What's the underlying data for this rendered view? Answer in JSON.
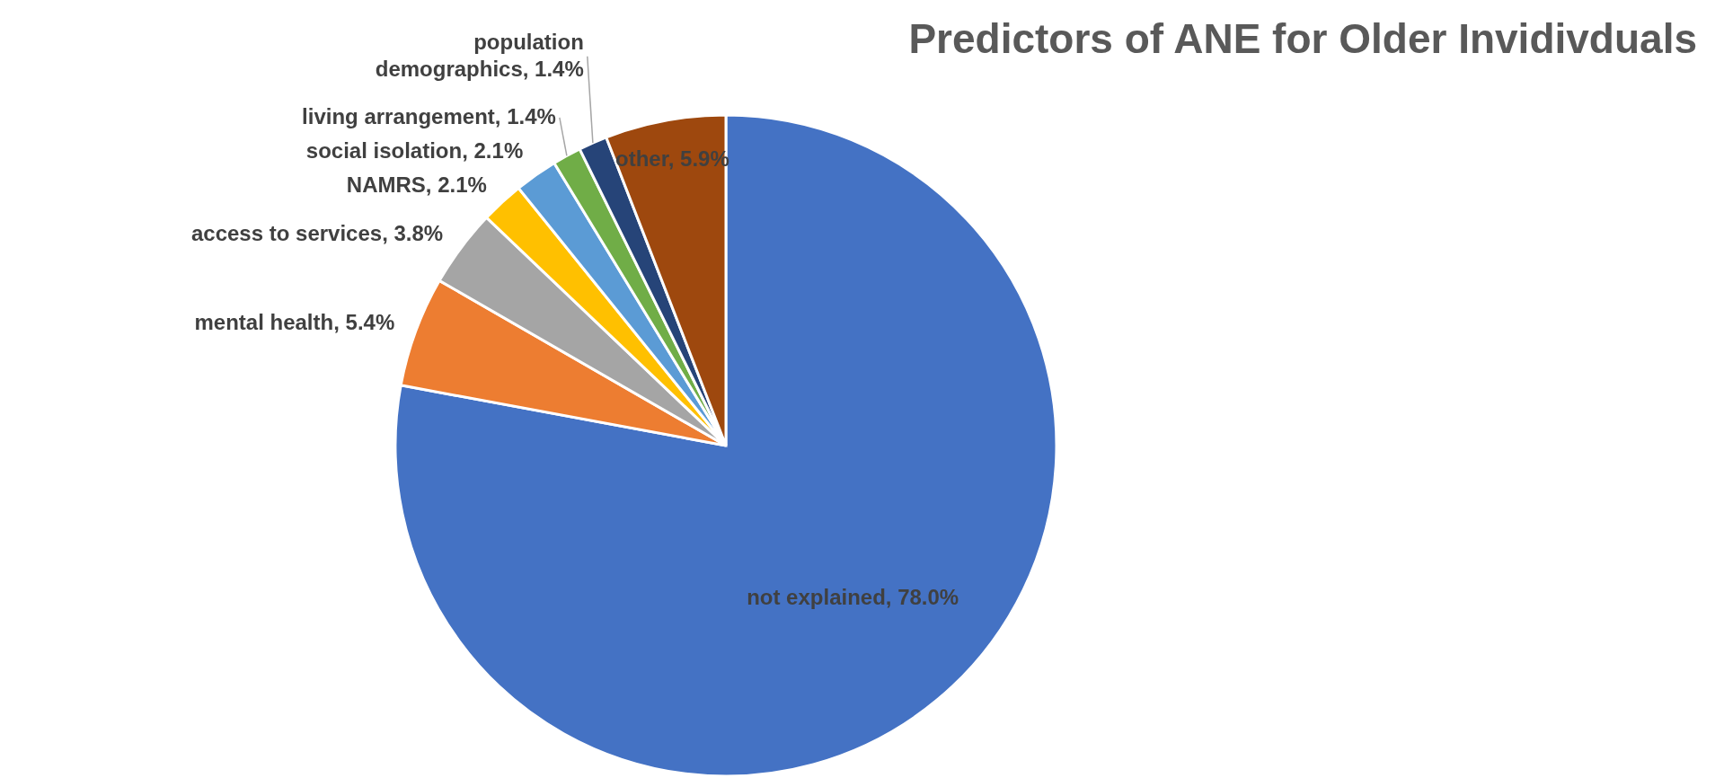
{
  "chart_data": {
    "type": "pie",
    "title": "Predictors of ANE for Older Invidivduals",
    "categories": [
      "not explained",
      "mental health",
      "access to services",
      "NAMRS",
      "social isolation",
      "living arrangement",
      "population demographics",
      "other"
    ],
    "values": [
      78.0,
      5.4,
      3.8,
      2.1,
      2.1,
      1.4,
      1.4,
      5.9
    ],
    "colors": [
      "#4472c4",
      "#ed7d31",
      "#a5a5a5",
      "#ffc000",
      "#5b9bd5",
      "#70ad47",
      "#264478",
      "#9e480e"
    ],
    "value_labels": [
      "78.0%",
      "5.4%",
      "3.8%",
      "2.1%",
      "2.1%",
      "1.4%",
      "1.4%",
      "5.9%"
    ],
    "legend": false
  }
}
